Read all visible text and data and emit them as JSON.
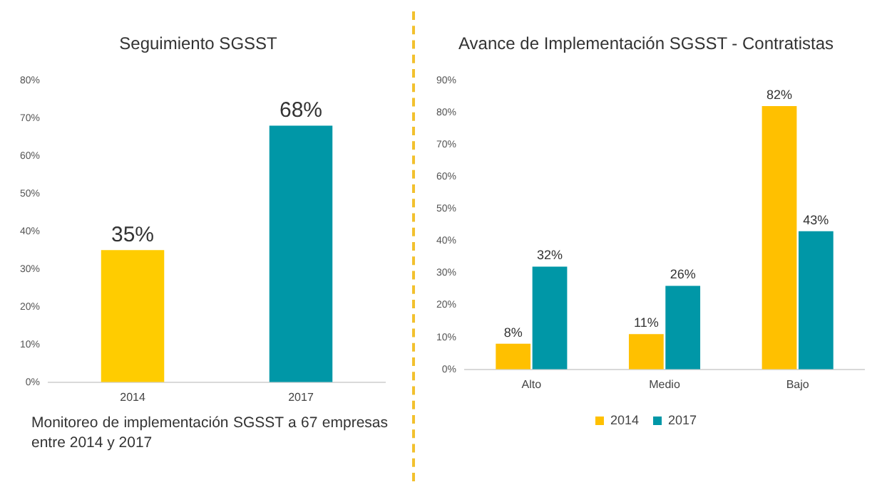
{
  "chart_data": [
    {
      "type": "bar",
      "title": "Seguimiento SGSST",
      "categories": [
        "2014",
        "2017"
      ],
      "values": [
        35,
        68
      ],
      "colors": [
        "#ffcc00",
        "#0097a7"
      ],
      "value_labels": [
        "35%",
        "68%"
      ],
      "ylim": [
        0,
        80
      ],
      "yticks": [
        {
          "value": 0,
          "label": "0%"
        },
        {
          "value": 10,
          "label": "10%"
        },
        {
          "value": 20,
          "label": "20%"
        },
        {
          "value": 30,
          "label": "30%"
        },
        {
          "value": 40,
          "label": "40%"
        },
        {
          "value": 50,
          "label": "50%"
        },
        {
          "value": 60,
          "label": "60%"
        },
        {
          "value": 70,
          "label": "70%"
        },
        {
          "value": 80,
          "label": "80%"
        }
      ],
      "grid": false,
      "legend": false,
      "annotations": [
        "Monitoreo de implementación SGSST a 67 empresas entre 2014 y 2017"
      ]
    },
    {
      "type": "bar",
      "title": "Avance de Implementación SGSST - Contratistas",
      "categories": [
        "Alto",
        "Medio",
        "Bajo"
      ],
      "series": [
        {
          "name": "2014",
          "color": "#ffc000",
          "values": [
            8,
            11,
            82
          ],
          "value_labels": [
            "8%",
            "11%",
            "82%"
          ]
        },
        {
          "name": "2017",
          "color": "#0097a7",
          "values": [
            32,
            26,
            43
          ],
          "value_labels": [
            "32%",
            "26%",
            "43%"
          ]
        }
      ],
      "ylim": [
        0,
        90
      ],
      "yticks": [
        {
          "value": 0,
          "label": "0%"
        },
        {
          "value": 10,
          "label": "10%"
        },
        {
          "value": 20,
          "label": "20%"
        },
        {
          "value": 30,
          "label": "30%"
        },
        {
          "value": 40,
          "label": "40%"
        },
        {
          "value": 50,
          "label": "50%"
        },
        {
          "value": 60,
          "label": "60%"
        },
        {
          "value": 70,
          "label": "70%"
        },
        {
          "value": 80,
          "label": "80%"
        },
        {
          "value": 90,
          "label": "90%"
        }
      ],
      "grid": false,
      "legend": "bottom"
    }
  ]
}
